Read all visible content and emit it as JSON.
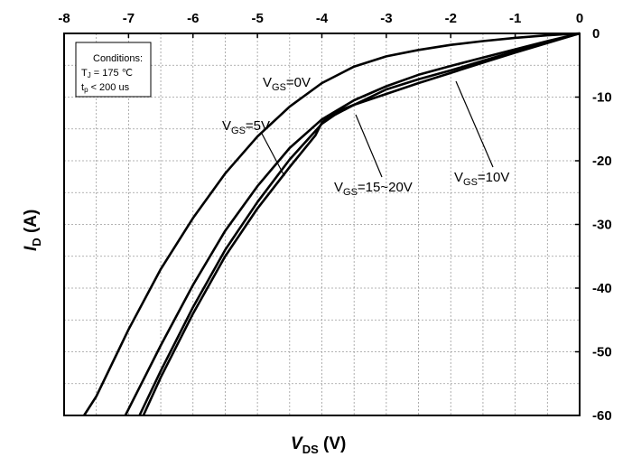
{
  "chart_data": {
    "type": "line",
    "x_axis": {
      "label_main": "V",
      "label_sub": "DS",
      "label_unit": " (V)",
      "range": [
        -8,
        0
      ],
      "ticks": [
        -8,
        -7,
        -6,
        -5,
        -4,
        -3,
        -2,
        -1,
        0
      ],
      "tick_labels": [
        "-8",
        "-7",
        "-6",
        "-5",
        "-4",
        "-3",
        "-2",
        "-1",
        "0"
      ],
      "ticks_position": "top",
      "minor_step": 0.5
    },
    "y_axis": {
      "label_main": "I",
      "label_sub": "D",
      "label_unit": " (A)",
      "range": [
        -60,
        0
      ],
      "ticks": [
        0,
        -10,
        -20,
        -30,
        -40,
        -50,
        -60
      ],
      "tick_labels": [
        "0",
        "-10",
        "-20",
        "-30",
        "-40",
        "-50",
        "-60"
      ],
      "ticks_position": "right",
      "minor_step": 5
    },
    "grid": true,
    "conditions": {
      "line1": "Conditions:",
      "line2_pre": "T",
      "line2_sub": "J",
      "line2_post": " =  175 ℃",
      "line3_pre": "t",
      "line3_sub": "p",
      "line3_post": " < 200 us"
    },
    "series": [
      {
        "label_pre": "V",
        "label_sub": "GS",
        "label_post": "=0V",
        "points": [
          [
            0,
            0
          ],
          [
            -0.5,
            -0.3
          ],
          [
            -1,
            -0.7
          ],
          [
            -1.5,
            -1.2
          ],
          [
            -2,
            -1.8
          ],
          [
            -2.5,
            -2.6
          ],
          [
            -3,
            -3.6
          ],
          [
            -3.5,
            -5.2
          ],
          [
            -4,
            -7.8
          ],
          [
            -4.5,
            -11.5
          ],
          [
            -5,
            -16.2
          ],
          [
            -5.5,
            -22
          ],
          [
            -6,
            -29
          ],
          [
            -6.5,
            -37
          ],
          [
            -7,
            -46.5
          ],
          [
            -7.5,
            -57
          ],
          [
            -7.69,
            -60
          ]
        ]
      },
      {
        "label_pre": "V",
        "label_sub": "GS",
        "label_post": "=5V",
        "points": [
          [
            0,
            0
          ],
          [
            -0.5,
            -1.2
          ],
          [
            -1,
            -2.5
          ],
          [
            -1.5,
            -3.8
          ],
          [
            -2,
            -5.1
          ],
          [
            -2.5,
            -6.5
          ],
          [
            -3,
            -8.3
          ],
          [
            -3.5,
            -10.5
          ],
          [
            -4,
            -13.5
          ],
          [
            -4.5,
            -18
          ],
          [
            -5,
            -24
          ],
          [
            -5.5,
            -31
          ],
          [
            -6,
            -39.5
          ],
          [
            -6.5,
            -49
          ],
          [
            -7,
            -59
          ],
          [
            -7.05,
            -60
          ]
        ]
      },
      {
        "label_pre": "V",
        "label_sub": "GS",
        "label_post": "=10V",
        "points": [
          [
            0,
            0
          ],
          [
            -0.5,
            -1.4
          ],
          [
            -1,
            -2.8
          ],
          [
            -1.5,
            -4.3
          ],
          [
            -2,
            -5.8
          ],
          [
            -2.5,
            -7.2
          ],
          [
            -3,
            -8.8
          ],
          [
            -3.5,
            -11.2
          ],
          [
            -3.8,
            -12.8
          ],
          [
            -4,
            -14.2
          ],
          [
            -4.5,
            -19.8
          ],
          [
            -5,
            -26.5
          ],
          [
            -5.5,
            -34
          ],
          [
            -6,
            -43
          ],
          [
            -6.5,
            -53
          ],
          [
            -6.83,
            -60
          ]
        ]
      },
      {
        "label_pre": "V",
        "label_sub": "GS",
        "label_post": "=15~20V",
        "points": [
          [
            0,
            0
          ],
          [
            -0.5,
            -1.5
          ],
          [
            -1,
            -3
          ],
          [
            -1.5,
            -4.6
          ],
          [
            -2,
            -6.2
          ],
          [
            -2.5,
            -7.8
          ],
          [
            -3,
            -9.5
          ],
          [
            -3.5,
            -11.2
          ],
          [
            -3.8,
            -12.4
          ],
          [
            -4,
            -14
          ],
          [
            -4.1,
            -16
          ],
          [
            -4.3,
            -18.5
          ],
          [
            -4.5,
            -21
          ],
          [
            -5,
            -27.5
          ],
          [
            -5.5,
            -35
          ],
          [
            -6,
            -44
          ],
          [
            -6.5,
            -54
          ],
          [
            -6.77,
            -60
          ]
        ]
      }
    ]
  }
}
